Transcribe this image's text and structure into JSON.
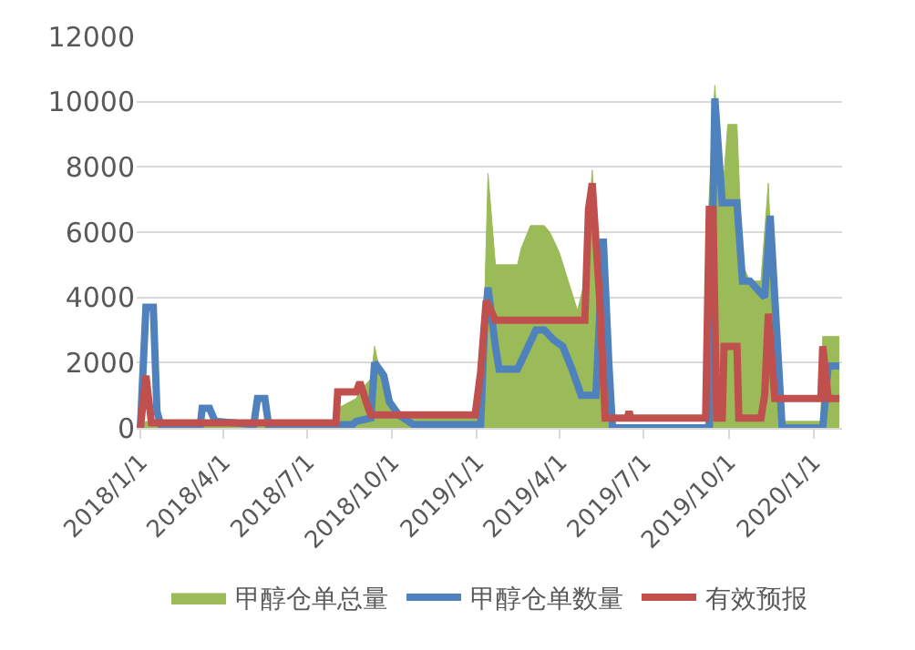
{
  "chart_data": {
    "type": "line",
    "series": [
      {
        "name": "甲醇仓单总量",
        "type": "area",
        "color": "#9bbb59",
        "x": [
          "2018-01-01",
          "2018-01-07",
          "2018-01-19",
          "2018-08-01",
          "2018-08-03",
          "2018-08-23",
          "2018-08-29",
          "2018-09-08",
          "2018-09-12",
          "2018-09-20",
          "2018-09-28",
          "2018-10-08",
          "2018-12-30",
          "2019-01-05",
          "2019-01-09",
          "2019-01-13",
          "2019-01-21",
          "2019-02-14",
          "2019-02-18",
          "2019-02-28",
          "2019-03-15",
          "2019-03-21",
          "2019-03-31",
          "2019-04-10",
          "2019-04-20",
          "2019-04-28",
          "2019-05-06",
          "2019-05-14",
          "2019-05-24",
          "2019-09-06",
          "2019-09-08",
          "2019-09-16",
          "2019-09-24",
          "2019-09-30",
          "2019-10-10",
          "2019-10-16",
          "2019-10-24",
          "2019-11-05",
          "2019-11-13",
          "2019-11-18",
          "2019-11-28",
          "2020-01-09",
          "2020-01-11",
          "2020-01-29"
        ],
        "values": [
          0,
          200,
          100,
          100,
          600,
          900,
          1200,
          1500,
          2500,
          1400,
          800,
          300,
          300,
          1000,
          3500,
          7800,
          5000,
          5000,
          5500,
          6200,
          6200,
          6000,
          5400,
          4500,
          3600,
          4500,
          7900,
          4000,
          100,
          100,
          6000,
          10500,
          7000,
          9300,
          9300,
          5000,
          4500,
          4500,
          7500,
          4000,
          200,
          200,
          2800,
          2800
        ]
      },
      {
        "name": "甲醇仓单数量",
        "color": "#4f81bd",
        "x": [
          "2018-01-01",
          "2018-01-07",
          "2018-01-15",
          "2018-01-19",
          "2018-01-23",
          "2018-03-07",
          "2018-03-09",
          "2018-03-17",
          "2018-03-23",
          "2018-05-04",
          "2018-05-08",
          "2018-05-16",
          "2018-05-20",
          "2018-08-19",
          "2018-08-23",
          "2018-09-08",
          "2018-09-12",
          "2018-09-22",
          "2018-09-28",
          "2018-10-08",
          "2018-10-24",
          "2019-01-05",
          "2019-01-09",
          "2019-01-13",
          "2019-01-21",
          "2019-01-25",
          "2019-02-14",
          "2019-02-24",
          "2019-03-06",
          "2019-03-15",
          "2019-03-25",
          "2019-04-04",
          "2019-04-14",
          "2019-04-24",
          "2019-05-10",
          "2019-05-18",
          "2019-05-24",
          "2019-05-28",
          "2019-09-10",
          "2019-09-16",
          "2019-09-24",
          "2019-10-10",
          "2019-10-16",
          "2019-10-24",
          "2019-11-09",
          "2019-11-15",
          "2019-11-20",
          "2019-11-28",
          "2020-01-11",
          "2020-01-17",
          "2020-01-29"
        ],
        "values": [
          0,
          3700,
          3700,
          500,
          100,
          100,
          600,
          600,
          200,
          100,
          900,
          900,
          100,
          100,
          200,
          300,
          2000,
          1600,
          800,
          400,
          100,
          100,
          3000,
          4300,
          2500,
          1800,
          1800,
          2400,
          3000,
          3000,
          2700,
          2500,
          1800,
          1000,
          1000,
          5800,
          2000,
          0,
          0,
          10100,
          6900,
          6900,
          4500,
          4500,
          4000,
          6500,
          4000,
          0,
          0,
          1900,
          1900
        ]
      },
      {
        "name": "有效预报",
        "color": "#c0504d",
        "x": [
          "2018-01-01",
          "2018-01-07",
          "2018-01-13",
          "2018-08-01",
          "2018-08-03",
          "2018-08-23",
          "2018-08-27",
          "2018-09-04",
          "2018-09-08",
          "2018-12-30",
          "2019-01-05",
          "2019-01-11",
          "2019-01-21",
          "2019-04-28",
          "2019-05-02",
          "2019-05-06",
          "2019-05-14",
          "2019-05-20",
          "2019-06-13",
          "2019-06-15",
          "2019-06-17",
          "2019-09-06",
          "2019-09-10",
          "2019-09-14",
          "2019-09-18",
          "2019-09-24",
          "2019-09-26",
          "2019-10-10",
          "2019-10-12",
          "2019-11-05",
          "2019-11-09",
          "2019-11-13",
          "2019-11-20",
          "2020-01-09",
          "2020-01-11",
          "2020-01-17",
          "2020-01-29"
        ],
        "values": [
          0,
          1600,
          150,
          150,
          1100,
          1100,
          1400,
          700,
          400,
          400,
          1700,
          3900,
          3300,
          3300,
          6700,
          7500,
          4000,
          300,
          300,
          500,
          300,
          300,
          6700,
          6700,
          300,
          300,
          2500,
          2500,
          300,
          300,
          1000,
          3500,
          900,
          900,
          2500,
          900,
          900
        ]
      }
    ],
    "xlim": [
      "2017-12-28",
      "2020-02-01"
    ],
    "xticks": [
      {
        "value": "2018-01-01",
        "label": "2018/1/1"
      },
      {
        "value": "2018-04-01",
        "label": "2018/4/1"
      },
      {
        "value": "2018-07-01",
        "label": "2018/7/1"
      },
      {
        "value": "2018-10-01",
        "label": "2018/10/1"
      },
      {
        "value": "2019-01-01",
        "label": "2019/1/1"
      },
      {
        "value": "2019-04-01",
        "label": "2019/4/1"
      },
      {
        "value": "2019-07-01",
        "label": "2019/7/1"
      },
      {
        "value": "2019-10-01",
        "label": "2019/10/1"
      },
      {
        "value": "2020-01-01",
        "label": "2020/1/1"
      }
    ],
    "ylim": [
      0,
      12000
    ],
    "yticks": [
      0,
      2000,
      4000,
      6000,
      8000,
      10000,
      12000
    ],
    "grid": "y",
    "legend": "bottom",
    "line_style": "solid",
    "marker": "none"
  }
}
